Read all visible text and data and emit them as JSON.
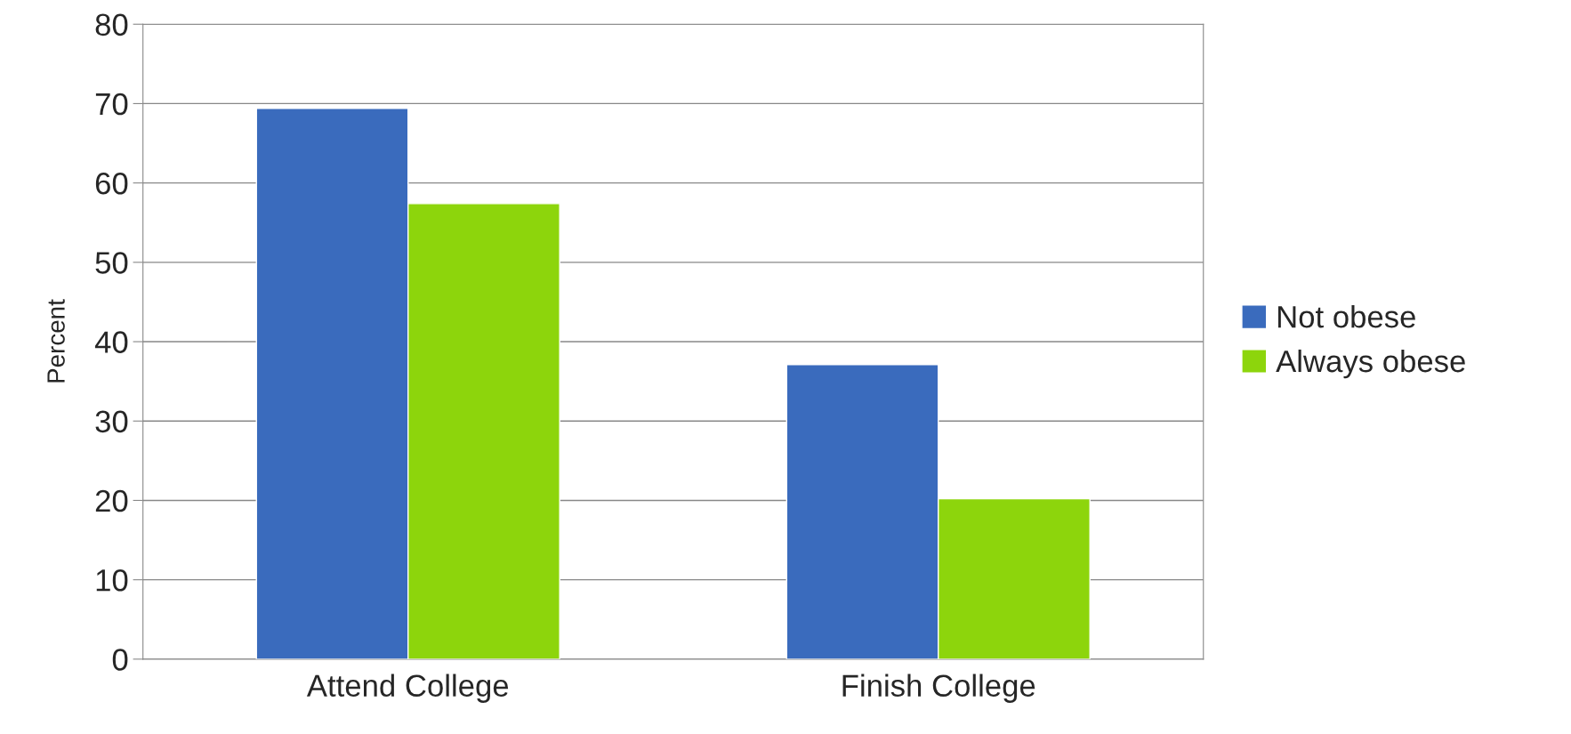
{
  "chart_data": {
    "type": "bar",
    "ylabel": "Percent",
    "categories": [
      "Attend College",
      "Finish College"
    ],
    "series": [
      {
        "name": "Not obese",
        "color": "#3a6bbd",
        "values": [
          69.4,
          37.1
        ]
      },
      {
        "name": "Always obese",
        "color": "#8dd50c",
        "values": [
          57.4,
          20.2
        ]
      }
    ],
    "ylim": [
      0,
      80
    ],
    "yticks": [
      0,
      10,
      20,
      30,
      40,
      50,
      60,
      70,
      80
    ],
    "grid": "y",
    "legend": "right"
  }
}
